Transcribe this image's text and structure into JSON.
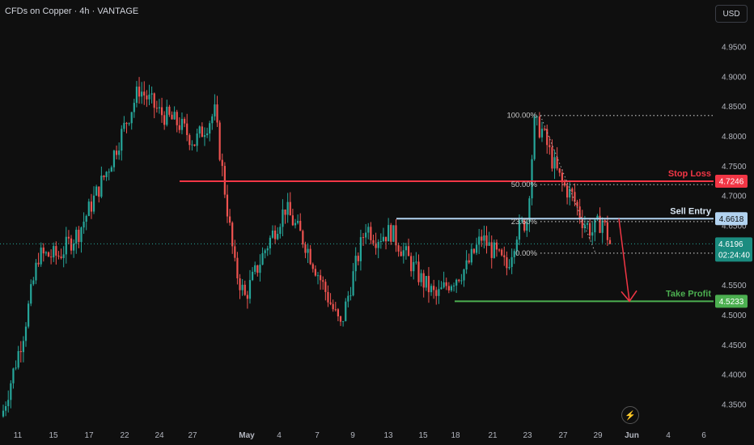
{
  "header": {
    "title": "CFDs on Copper · 4h · VANTAGE",
    "currency": "USD"
  },
  "colors": {
    "background": "#0f0f0f",
    "up": "#26a69a",
    "down": "#ef5350",
    "stop_loss": "#f23645",
    "sell_entry": "#b2d3f0",
    "take_profit": "#4caf50",
    "fib_dots": "#b0b0b0",
    "axis_text": "#b2b5be"
  },
  "chart_data": {
    "type": "candlestick",
    "yaxis": {
      "range": [
        4.3,
        5.0
      ],
      "ticks": [
        "4.9500",
        "4.9000",
        "4.8500",
        "4.8000",
        "4.7500",
        "4.7000",
        "4.6500",
        "4.6000",
        "4.5500",
        "4.5000",
        "4.4500",
        "4.4000",
        "4.3500"
      ]
    },
    "xaxis": {
      "ticks": [
        "11",
        "15",
        "17",
        "22",
        "24",
        "27",
        "May",
        "4",
        "7",
        "9",
        "13",
        "15",
        "18",
        "21",
        "23",
        "27",
        "29",
        "Jun",
        "4",
        "6"
      ]
    },
    "anchors": [
      {
        "i": 0,
        "p": 4.34
      },
      {
        "i": 8,
        "p": 4.47
      },
      {
        "i": 14,
        "p": 4.6
      },
      {
        "i": 22,
        "p": 4.6
      },
      {
        "i": 30,
        "p": 4.64
      },
      {
        "i": 42,
        "p": 4.75
      },
      {
        "i": 54,
        "p": 4.88
      },
      {
        "i": 62,
        "p": 4.84
      },
      {
        "i": 70,
        "p": 4.82
      },
      {
        "i": 76,
        "p": 4.79
      },
      {
        "i": 84,
        "p": 4.84
      },
      {
        "i": 88,
        "p": 4.71
      },
      {
        "i": 92,
        "p": 4.58
      },
      {
        "i": 96,
        "p": 4.53
      },
      {
        "i": 104,
        "p": 4.61
      },
      {
        "i": 112,
        "p": 4.68
      },
      {
        "i": 120,
        "p": 4.62
      },
      {
        "i": 128,
        "p": 4.54
      },
      {
        "i": 134,
        "p": 4.48
      },
      {
        "i": 138,
        "p": 4.55
      },
      {
        "i": 144,
        "p": 4.65
      },
      {
        "i": 148,
        "p": 4.63
      },
      {
        "i": 154,
        "p": 4.64
      },
      {
        "i": 160,
        "p": 4.6
      },
      {
        "i": 166,
        "p": 4.56
      },
      {
        "i": 172,
        "p": 4.53
      },
      {
        "i": 176,
        "p": 4.55
      },
      {
        "i": 184,
        "p": 4.58
      },
      {
        "i": 190,
        "p": 4.63
      },
      {
        "i": 196,
        "p": 4.6
      },
      {
        "i": 200,
        "p": 4.58
      },
      {
        "i": 204,
        "p": 4.64
      },
      {
        "i": 208,
        "p": 4.66
      },
      {
        "i": 211,
        "p": 4.82
      },
      {
        "i": 214,
        "p": 4.81
      },
      {
        "i": 218,
        "p": 4.76
      },
      {
        "i": 222,
        "p": 4.72
      },
      {
        "i": 226,
        "p": 4.7
      },
      {
        "i": 230,
        "p": 4.66
      },
      {
        "i": 234,
        "p": 4.64
      },
      {
        "i": 238,
        "p": 4.66
      },
      {
        "i": 241,
        "p": 4.62
      }
    ],
    "candle_count": 242,
    "levels": {
      "stop_loss": {
        "label": "Stop Loss",
        "value": "4.7246",
        "price": 4.7246
      },
      "sell_entry": {
        "label": "Sell Entry",
        "value": "4.6618",
        "price": 4.6618
      },
      "take_profit": {
        "label": "Take Profit",
        "value": "4.5233",
        "price": 4.5233
      },
      "current": {
        "value": "4.6196",
        "price": 4.6196,
        "countdown": "02:24:40"
      }
    },
    "fibonacci": {
      "levels": [
        {
          "label": "100.00%",
          "price": 4.835
        },
        {
          "label": "50.00%",
          "price": 4.719
        },
        {
          "label": "23.60%",
          "price": 4.657
        },
        {
          "label": "0.00%",
          "price": 4.604
        }
      ]
    },
    "projection": {
      "from_price": 4.6618,
      "to_price": 4.5233
    }
  }
}
